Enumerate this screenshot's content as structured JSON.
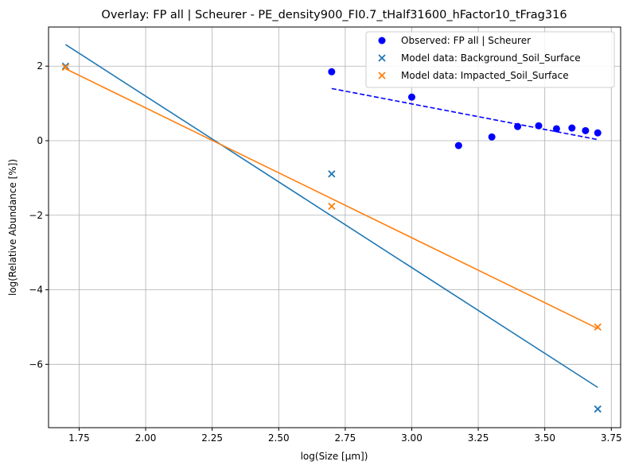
{
  "chart_data": {
    "type": "scatter",
    "title": "Overlay: FP all | Scheurer - PE_density900_FI0.7_tHalf31600_hFactor10_tFrag316",
    "xlabel": "log(Size [µm])",
    "ylabel": "log(Relative Abundance [%])",
    "xlim": [
      1.635,
      3.785
    ],
    "ylim": [
      -7.7,
      3.05
    ],
    "xticks": [
      1.75,
      2.0,
      2.25,
      2.5,
      2.75,
      3.0,
      3.25,
      3.5,
      3.75
    ],
    "xtick_labels": [
      "1.75",
      "2.00",
      "2.25",
      "2.50",
      "2.75",
      "3.00",
      "3.25",
      "3.50",
      "3.75"
    ],
    "yticks": [
      -6,
      -4,
      -2,
      0,
      2
    ],
    "ytick_labels": [
      "−6",
      "−4",
      "−2",
      "0",
      "2"
    ],
    "grid": true,
    "legend_position": "top-right",
    "series": [
      {
        "name": "Observed: FP all | Scheurer",
        "kind": "scatter",
        "marker": "circle",
        "color": "#0000ff",
        "x": [
          2.699,
          3.0,
          3.176,
          3.301,
          3.398,
          3.477,
          3.544,
          3.602,
          3.653,
          3.699
        ],
        "y": [
          1.85,
          1.17,
          -0.13,
          0.1,
          0.38,
          0.4,
          0.32,
          0.34,
          0.27,
          0.21
        ]
      },
      {
        "name": "Model data: Background_Soil_Surface",
        "kind": "scatter",
        "marker": "x",
        "color": "#1f77b4",
        "x": [
          1.699,
          2.699,
          3.699
        ],
        "y": [
          2.0,
          -0.89,
          -7.2
        ]
      },
      {
        "name": "Model data: Impacted_Soil_Surface",
        "kind": "scatter",
        "marker": "x",
        "color": "#ff7f0e",
        "x": [
          1.699,
          2.699,
          3.699
        ],
        "y": [
          1.97,
          -1.76,
          -5.0
        ]
      }
    ],
    "fit_lines": [
      {
        "color": "#0000ff",
        "style": "dashed",
        "x": [
          2.699,
          3.699
        ],
        "y": [
          1.4,
          0.03
        ]
      },
      {
        "color": "#1f77b4",
        "style": "solid",
        "x": [
          1.699,
          3.699
        ],
        "y": [
          2.58,
          -6.62
        ]
      },
      {
        "color": "#ff7f0e",
        "style": "solid",
        "x": [
          1.699,
          3.699
        ],
        "y": [
          1.93,
          -5.04
        ]
      }
    ]
  }
}
